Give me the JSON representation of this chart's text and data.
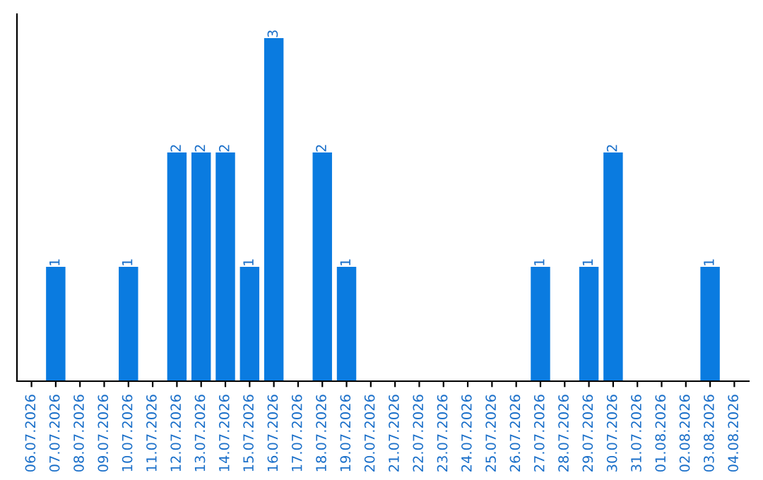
{
  "chart_data": {
    "type": "bar",
    "categories": [
      "06.07.2026",
      "07.07.2026",
      "08.07.2026",
      "09.07.2026",
      "10.07.2026",
      "11.07.2026",
      "12.07.2026",
      "13.07.2026",
      "14.07.2026",
      "15.07.2026",
      "16.07.2026",
      "17.07.2026",
      "18.07.2026",
      "19.07.2026",
      "20.07.2026",
      "21.07.2026",
      "22.07.2026",
      "23.07.2026",
      "24.07.2026",
      "25.07.2026",
      "26.07.2026",
      "27.07.2026",
      "28.07.2026",
      "29.07.2026",
      "30.07.2026",
      "31.07.2026",
      "01.08.2026",
      "02.08.2026",
      "03.08.2026",
      "04.08.2026"
    ],
    "values": [
      0,
      1,
      0,
      0,
      1,
      0,
      2,
      2,
      2,
      1,
      3,
      0,
      2,
      1,
      0,
      0,
      0,
      0,
      0,
      0,
      0,
      1,
      0,
      1,
      2,
      0,
      0,
      0,
      1,
      0
    ],
    "value_labels": [
      null,
      "1",
      null,
      null,
      "1",
      null,
      "2",
      "2",
      "2",
      "1",
      "3",
      null,
      "2",
      "1",
      null,
      null,
      null,
      null,
      null,
      null,
      null,
      "1",
      null,
      "1",
      "2",
      null,
      null,
      null,
      "1",
      null
    ],
    "color": "#0a7be0",
    "tick_labels": "x",
    "grid": false
  }
}
